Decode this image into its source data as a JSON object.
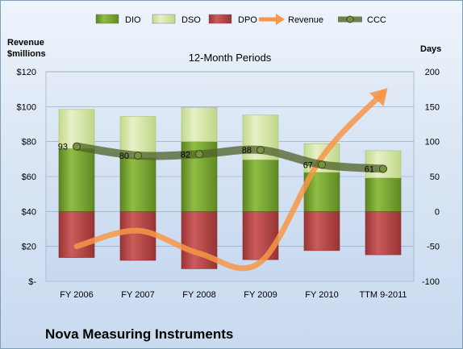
{
  "chart_data": {
    "type": "bar",
    "title": "12-Month Periods",
    "company": "Nova Measuring Instruments",
    "left_axis_title_line1": "Revenue",
    "left_axis_title_line2": "$millions",
    "right_axis_title": "Days",
    "categories": [
      "FY 2006",
      "FY 2007",
      "FY 2008",
      "FY 2009",
      "FY 2010",
      "TTM 9-2011"
    ],
    "left_ticks": [
      "$-",
      "$20",
      "$40",
      "$60",
      "$80",
      "$100",
      "$120"
    ],
    "left_lim": [
      0,
      120
    ],
    "right_ticks": [
      "-100",
      "-50",
      "0",
      "50",
      "100",
      "150",
      "200"
    ],
    "right_lim": [
      -100,
      200
    ],
    "legend": [
      {
        "key": "dio",
        "label": "DIO"
      },
      {
        "key": "dso",
        "label": "DSO"
      },
      {
        "key": "dpo",
        "label": "DPO"
      },
      {
        "key": "revenue",
        "label": "Revenue"
      },
      {
        "key": "ccc",
        "label": "CCC"
      }
    ],
    "legend_position": "top",
    "series": [
      {
        "name": "DIO",
        "axis": "right",
        "values": [
          90,
          77,
          100,
          74,
          56,
          48
        ]
      },
      {
        "name": "DSO",
        "axis": "right",
        "values": [
          56,
          59,
          49,
          64,
          41,
          39
        ]
      },
      {
        "name": "DPO",
        "axis": "right",
        "values": [
          -66,
          -70,
          -82,
          -69,
          -56,
          -62
        ]
      },
      {
        "name": "Revenue",
        "axis": "left",
        "values": [
          20,
          29,
          16,
          11,
          71,
          108
        ]
      },
      {
        "name": "CCC",
        "axis": "right",
        "values": [
          93,
          80,
          82,
          88,
          67,
          61
        ]
      }
    ],
    "ccc_labels": [
      "93",
      "80",
      "82",
      "88",
      "67",
      "61"
    ],
    "colors": {
      "dio": "#7aa531",
      "dso": "#d5e6a5",
      "dpo": "#b94848",
      "revenue": "#f79646",
      "ccc": "#4f6228"
    },
    "grid": true
  }
}
